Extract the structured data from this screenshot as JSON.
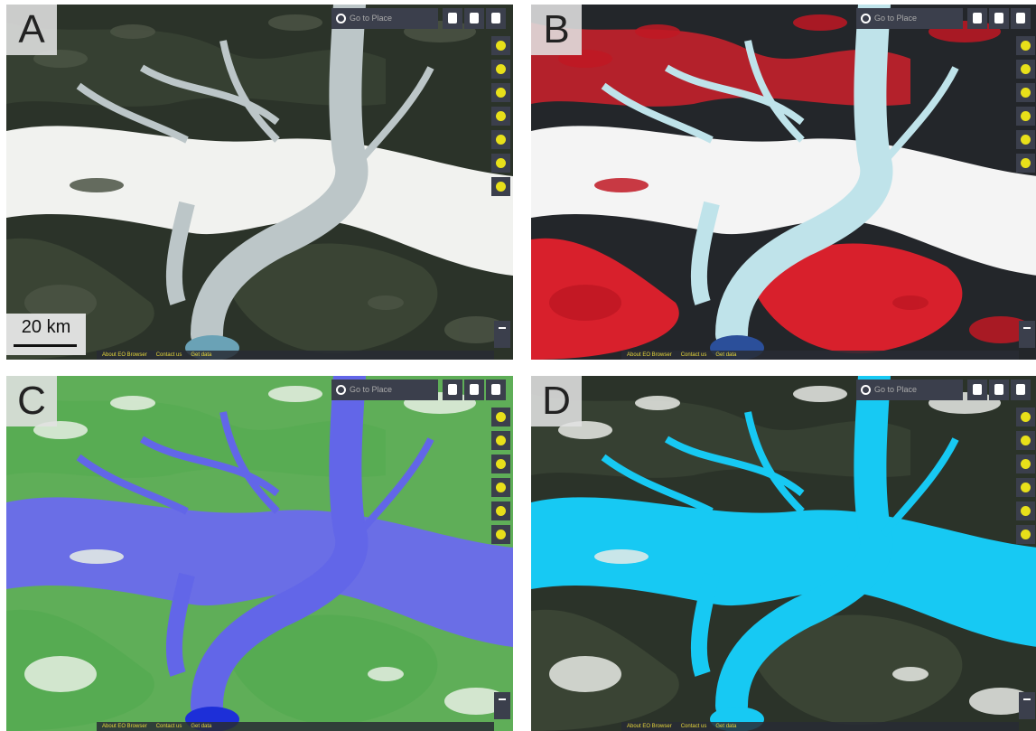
{
  "panels": [
    {
      "label": "A"
    },
    {
      "label": "B"
    },
    {
      "label": "C"
    },
    {
      "label": "D"
    }
  ],
  "search_placeholder": "Go to Place",
  "scale_bar": "20 km",
  "footer": [
    "About EO Browser",
    "Contact us",
    "Get data"
  ]
}
